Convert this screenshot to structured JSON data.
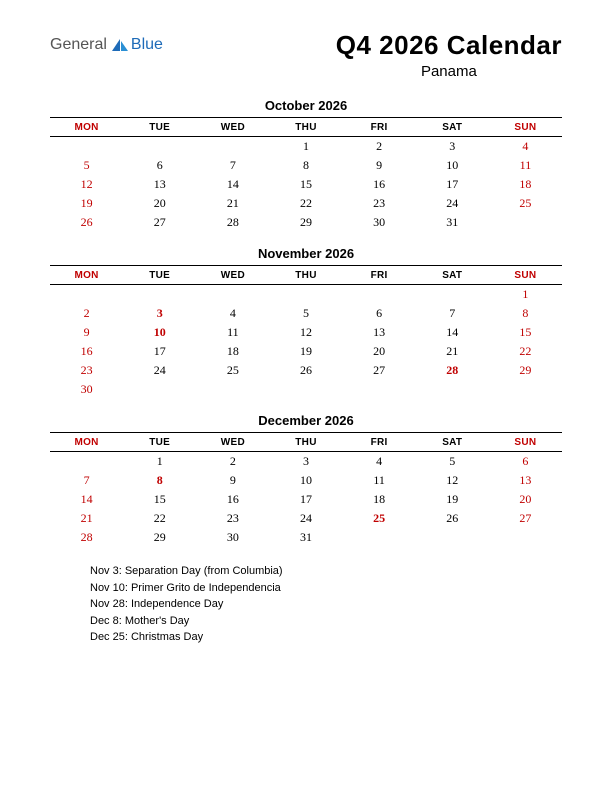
{
  "logo": {
    "text1": "General",
    "text2": "Blue",
    "color1": "#555555",
    "color2": "#1e6bb8"
  },
  "title": "Q4 2026 Calendar",
  "subtitle": "Panama",
  "headers": [
    "MON",
    "TUE",
    "WED",
    "THU",
    "FRI",
    "SAT",
    "SUN"
  ],
  "header_colors": [
    "#c00000",
    "#000000",
    "#000000",
    "#000000",
    "#000000",
    "#000000",
    "#c00000"
  ],
  "text_color": "#000000",
  "weekend_color": "#c00000",
  "holiday_color": "#c00000",
  "border_color": "#000000",
  "background_color": "#ffffff",
  "font_size_title": 26,
  "font_size_month": 13,
  "font_size_header": 10,
  "font_size_cell": 12,
  "months": [
    {
      "name": "October 2026",
      "weeks": [
        [
          null,
          null,
          null,
          {
            "d": 1
          },
          {
            "d": 2
          },
          {
            "d": 3
          },
          {
            "d": 4,
            "w": true
          }
        ],
        [
          {
            "d": 5,
            "w": true
          },
          {
            "d": 6
          },
          {
            "d": 7
          },
          {
            "d": 8
          },
          {
            "d": 9
          },
          {
            "d": 10
          },
          {
            "d": 11,
            "w": true
          }
        ],
        [
          {
            "d": 12,
            "w": true
          },
          {
            "d": 13
          },
          {
            "d": 14
          },
          {
            "d": 15
          },
          {
            "d": 16
          },
          {
            "d": 17
          },
          {
            "d": 18,
            "w": true
          }
        ],
        [
          {
            "d": 19,
            "w": true
          },
          {
            "d": 20
          },
          {
            "d": 21
          },
          {
            "d": 22
          },
          {
            "d": 23
          },
          {
            "d": 24
          },
          {
            "d": 25,
            "w": true
          }
        ],
        [
          {
            "d": 26,
            "w": true
          },
          {
            "d": 27
          },
          {
            "d": 28
          },
          {
            "d": 29
          },
          {
            "d": 30
          },
          {
            "d": 31
          },
          null
        ]
      ]
    },
    {
      "name": "November 2026",
      "weeks": [
        [
          null,
          null,
          null,
          null,
          null,
          null,
          {
            "d": 1,
            "w": true
          }
        ],
        [
          {
            "d": 2,
            "w": true
          },
          {
            "d": 3,
            "h": true
          },
          {
            "d": 4
          },
          {
            "d": 5
          },
          {
            "d": 6
          },
          {
            "d": 7
          },
          {
            "d": 8,
            "w": true
          }
        ],
        [
          {
            "d": 9,
            "w": true
          },
          {
            "d": 10,
            "h": true
          },
          {
            "d": 11
          },
          {
            "d": 12
          },
          {
            "d": 13
          },
          {
            "d": 14
          },
          {
            "d": 15,
            "w": true
          }
        ],
        [
          {
            "d": 16,
            "w": true
          },
          {
            "d": 17
          },
          {
            "d": 18
          },
          {
            "d": 19
          },
          {
            "d": 20
          },
          {
            "d": 21
          },
          {
            "d": 22,
            "w": true
          }
        ],
        [
          {
            "d": 23,
            "w": true
          },
          {
            "d": 24
          },
          {
            "d": 25
          },
          {
            "d": 26
          },
          {
            "d": 27
          },
          {
            "d": 28,
            "h": true
          },
          {
            "d": 29,
            "w": true
          }
        ],
        [
          {
            "d": 30,
            "w": true
          },
          null,
          null,
          null,
          null,
          null,
          null
        ]
      ]
    },
    {
      "name": "December 2026",
      "weeks": [
        [
          null,
          {
            "d": 1
          },
          {
            "d": 2
          },
          {
            "d": 3
          },
          {
            "d": 4
          },
          {
            "d": 5
          },
          {
            "d": 6,
            "w": true
          }
        ],
        [
          {
            "d": 7,
            "w": true
          },
          {
            "d": 8,
            "h": true
          },
          {
            "d": 9
          },
          {
            "d": 10
          },
          {
            "d": 11
          },
          {
            "d": 12
          },
          {
            "d": 13,
            "w": true
          }
        ],
        [
          {
            "d": 14,
            "w": true
          },
          {
            "d": 15
          },
          {
            "d": 16
          },
          {
            "d": 17
          },
          {
            "d": 18
          },
          {
            "d": 19
          },
          {
            "d": 20,
            "w": true
          }
        ],
        [
          {
            "d": 21,
            "w": true
          },
          {
            "d": 22
          },
          {
            "d": 23
          },
          {
            "d": 24
          },
          {
            "d": 25,
            "h": true
          },
          {
            "d": 26
          },
          {
            "d": 27,
            "w": true
          }
        ],
        [
          {
            "d": 28,
            "w": true
          },
          {
            "d": 29
          },
          {
            "d": 30
          },
          {
            "d": 31
          },
          null,
          null,
          null
        ]
      ]
    }
  ],
  "holidays": [
    "Nov 3: Separation Day (from Columbia)",
    "Nov 10: Primer Grito de Independencia",
    "Nov 28: Independence Day",
    "Dec 8: Mother's Day",
    "Dec 25: Christmas Day"
  ]
}
